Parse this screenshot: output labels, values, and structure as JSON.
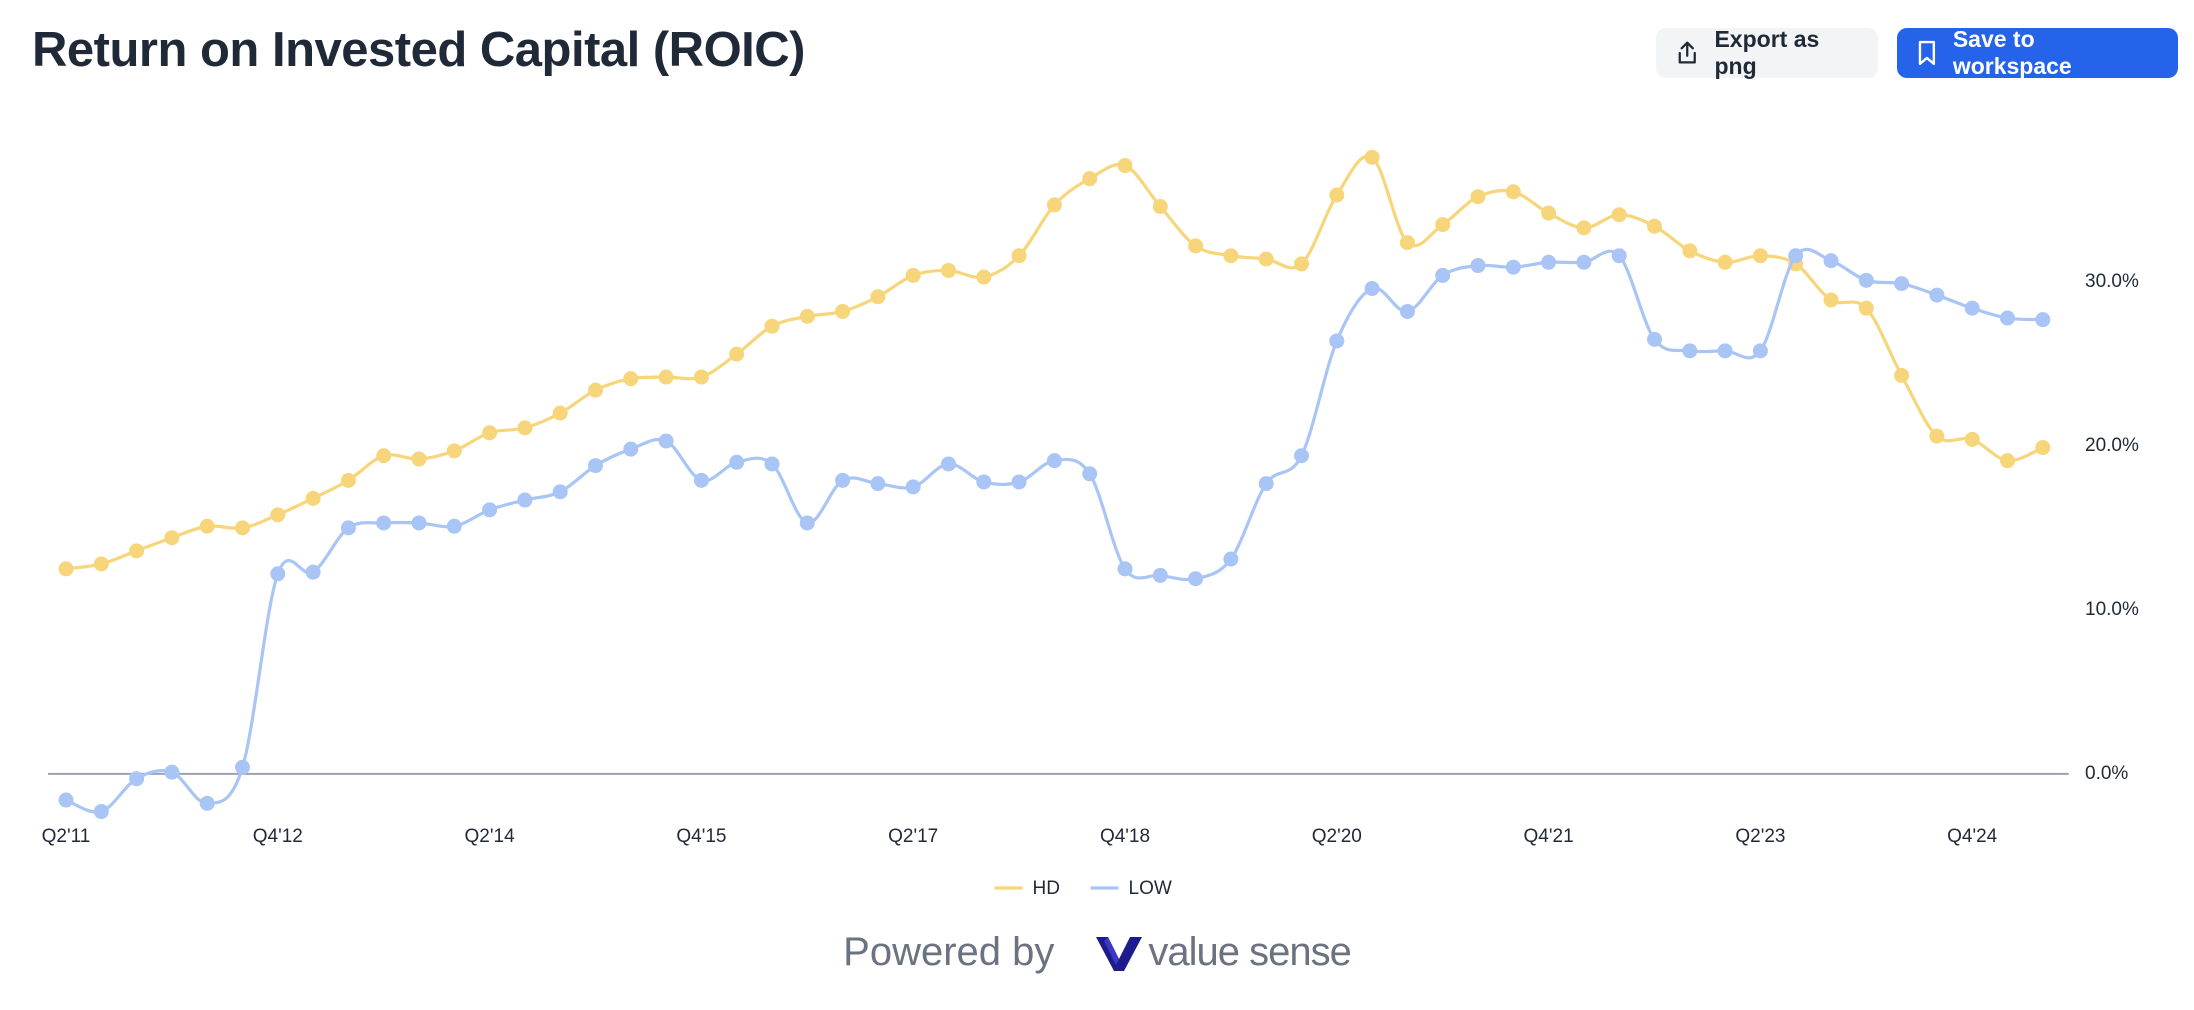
{
  "title": "Return on Invested Capital (ROIC)",
  "buttons": {
    "export": "Export as png",
    "save": "Save to workspace"
  },
  "footer": {
    "powered_by": "Powered by",
    "brand": "value sense"
  },
  "chart_data": {
    "type": "line",
    "categories": [
      "Q2'11",
      null,
      null,
      null,
      null,
      null,
      "Q4'12",
      null,
      null,
      null,
      null,
      null,
      "Q2'14",
      null,
      null,
      null,
      null,
      null,
      "Q4'15",
      null,
      null,
      null,
      null,
      null,
      "Q2'17",
      null,
      null,
      null,
      null,
      null,
      "Q4'18",
      null,
      null,
      null,
      null,
      null,
      "Q2'20",
      null,
      null,
      null,
      null,
      null,
      "Q4'21",
      null,
      null,
      null,
      null,
      null,
      "Q2'23",
      null,
      null,
      null,
      null,
      null,
      "Q4'24",
      null,
      null
    ],
    "series": [
      {
        "name": "HD",
        "color": "#f7d57a",
        "values": [
          12.5,
          12.8,
          13.6,
          14.4,
          15.1,
          15.0,
          15.8,
          16.8,
          17.9,
          19.4,
          19.2,
          19.7,
          20.8,
          21.1,
          22.0,
          23.4,
          24.1,
          24.2,
          24.2,
          25.6,
          27.3,
          27.9,
          28.2,
          29.1,
          30.4,
          30.7,
          30.3,
          31.6,
          34.7,
          36.3,
          37.1,
          34.6,
          32.2,
          31.6,
          31.4,
          31.1,
          35.3,
          37.6,
          32.4,
          33.5,
          35.2,
          35.5,
          34.2,
          33.3,
          34.1,
          33.4,
          31.9,
          31.2,
          31.6,
          31.1,
          28.9,
          28.4,
          24.3,
          20.6,
          20.4,
          19.1,
          19.9
        ]
      },
      {
        "name": "LOW",
        "color": "#a9c5f5",
        "values": [
          -1.6,
          -2.3,
          -0.3,
          0.1,
          -1.8,
          0.4,
          12.2,
          12.3,
          15.0,
          15.3,
          15.3,
          15.1,
          16.1,
          16.7,
          17.2,
          18.8,
          19.8,
          20.3,
          17.9,
          19.0,
          18.9,
          15.3,
          17.9,
          17.7,
          17.5,
          18.9,
          17.8,
          17.8,
          19.1,
          18.3,
          12.5,
          12.1,
          11.9,
          13.1,
          17.7,
          19.4,
          26.4,
          29.6,
          28.2,
          30.4,
          31.0,
          30.9,
          31.2,
          31.2,
          31.6,
          26.5,
          25.8,
          25.8,
          25.8,
          31.6,
          31.3,
          30.1,
          29.9,
          29.2,
          28.4,
          27.8,
          27.7
        ]
      }
    ],
    "ylim": [
      -3,
      40
    ],
    "yticks": [
      {
        "value": 0,
        "label": "0.0%"
      },
      {
        "value": 10,
        "label": "10.0%"
      },
      {
        "value": 20,
        "label": "20.0%"
      },
      {
        "value": 30,
        "label": "30.0%"
      }
    ],
    "grid": false,
    "legend": "bottom"
  }
}
